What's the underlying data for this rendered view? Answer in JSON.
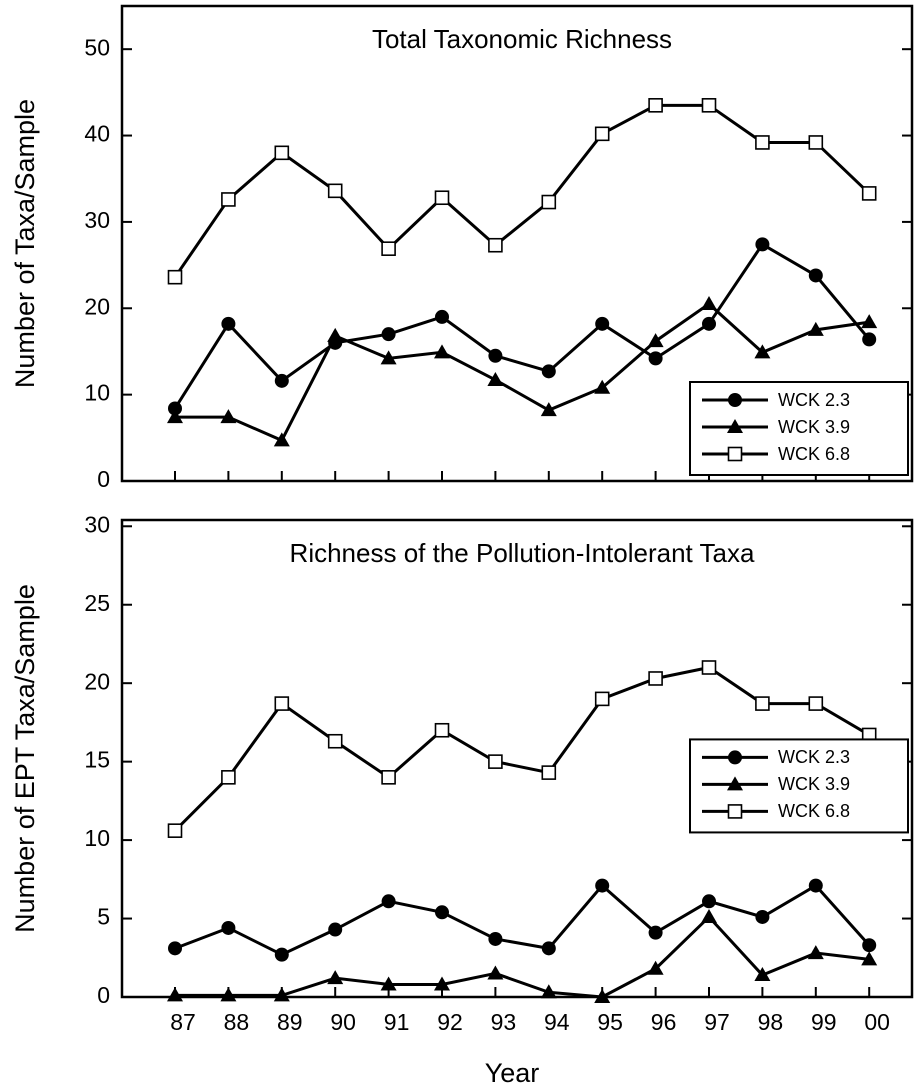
{
  "chart_data": [
    {
      "type": "line",
      "title": "Total Taxonomic Richness",
      "y_label": "Number of Taxa/Sample",
      "ylim": [
        0,
        55
      ],
      "yticks": [
        0,
        10,
        20,
        30,
        40,
        50
      ],
      "grid": false,
      "legend": "lower right",
      "series": [
        {
          "name": "WCK 2.3",
          "color": "#000000",
          "marker": "circle",
          "values": [
            8.4,
            18.2,
            11.6,
            16.0,
            17.0,
            19.0,
            14.5,
            12.7,
            18.2,
            14.2,
            18.2,
            27.4,
            23.8,
            16.4
          ]
        },
        {
          "name": "WCK 3.9",
          "color": "#000000",
          "marker": "triangle",
          "values": [
            7.4,
            7.4,
            4.7,
            16.8,
            14.2,
            14.9,
            11.7,
            8.2,
            10.8,
            16.2,
            20.5,
            14.9,
            17.5,
            18.4
          ]
        },
        {
          "name": "WCK 6.8",
          "color": "#000000",
          "marker": "square",
          "values": [
            23.6,
            32.6,
            38.0,
            33.6,
            26.9,
            32.8,
            27.3,
            32.3,
            40.2,
            43.5,
            43.5,
            39.2,
            39.2,
            33.3
          ]
        }
      ]
    },
    {
      "type": "line",
      "title": "Richness of the Pollution-Intolerant Taxa",
      "y_label": "Number of EPT Taxa/Sample",
      "x_label": "Year",
      "categories": [
        "87",
        "88",
        "89",
        "90",
        "91",
        "92",
        "93",
        "94",
        "95",
        "96",
        "97",
        "98",
        "99",
        "00"
      ],
      "ylim": [
        0,
        30.4
      ],
      "yticks": [
        0,
        5,
        10,
        15,
        20,
        25,
        30
      ],
      "grid": false,
      "legend": "center right",
      "series": [
        {
          "name": "WCK 2.3",
          "color": "#000000",
          "marker": "circle",
          "values": [
            3.1,
            4.4,
            2.7,
            4.3,
            6.1,
            5.4,
            3.7,
            3.1,
            7.1,
            4.1,
            6.1,
            5.1,
            7.1,
            3.3
          ]
        },
        {
          "name": "WCK 3.9",
          "color": "#000000",
          "marker": "triangle",
          "values": [
            0.1,
            0.1,
            0.1,
            1.2,
            0.8,
            0.8,
            1.5,
            0.3,
            0.0,
            1.8,
            5.1,
            1.4,
            2.8,
            2.4
          ]
        },
        {
          "name": "WCK 6.8",
          "color": "#000000",
          "marker": "square",
          "values": [
            10.6,
            14.0,
            18.7,
            16.3,
            14.0,
            17.0,
            15.0,
            14.3,
            19.0,
            20.3,
            21.0,
            18.7,
            18.7,
            16.7
          ]
        }
      ]
    }
  ]
}
